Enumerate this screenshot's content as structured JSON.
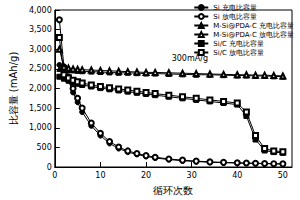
{
  "chart_data": {
    "type": "line",
    "x_label": "循环次数",
    "y_label": "比容量 (mAh/g)",
    "annotation": "300mA/g",
    "x": [
      1,
      2,
      3,
      4,
      5,
      6,
      8,
      10,
      12,
      14,
      16,
      18,
      20,
      22,
      25,
      28,
      31,
      34,
      37,
      40,
      42,
      44,
      46,
      48,
      50
    ],
    "xlim": [
      0,
      52
    ],
    "xticks": [
      0,
      10,
      20,
      30,
      40,
      50
    ],
    "ylim": [
      0,
      4000
    ],
    "yticks": [
      0,
      500,
      1000,
      1500,
      2000,
      2500,
      3000,
      3500,
      4000
    ],
    "grid": false,
    "legend": "top-right",
    "series": [
      {
        "name": "Si 充电比容量",
        "color": "#000000",
        "marker": "filled_circle",
        "line_style": "solid",
        "values": [
          2600,
          2450,
          2200,
          1900,
          1650,
          1400,
          1050,
          800,
          600,
          470,
          380,
          320,
          270,
          230,
          190,
          160,
          140,
          120,
          110,
          100,
          95,
          90,
          85,
          80,
          75
        ]
      },
      {
        "name": "Si 放电比容量",
        "color": "#000000",
        "marker": "open_circle",
        "line_style": "solid",
        "values": [
          3750,
          2550,
          2300,
          2000,
          1750,
          1500,
          1120,
          860,
          650,
          510,
          410,
          345,
          290,
          250,
          205,
          175,
          150,
          130,
          118,
          108,
          100,
          95,
          90,
          85,
          80
        ]
      },
      {
        "name": "M-Si@PDA-C 充电比容量",
        "color": "#000000",
        "marker": "filled_triangle",
        "line_style": "solid",
        "values": [
          2500,
          2480,
          2470,
          2460,
          2450,
          2440,
          2430,
          2420,
          2410,
          2400,
          2400,
          2390,
          2380,
          2380,
          2370,
          2360,
          2350,
          2350,
          2340,
          2330,
          2330,
          2320,
          2320,
          2310,
          2300
        ]
      },
      {
        "name": "M-Si@PDA-C 放电比容量",
        "color": "#000000",
        "marker": "open_triangle",
        "line_style": "solid",
        "values": [
          3000,
          2550,
          2520,
          2500,
          2490,
          2480,
          2470,
          2460,
          2450,
          2440,
          2430,
          2420,
          2410,
          2410,
          2400,
          2390,
          2380,
          2370,
          2360,
          2350,
          2350,
          2340,
          2340,
          2330,
          2320
        ]
      },
      {
        "name": "Si/C 充电比容量",
        "color": "#000000",
        "marker": "filled_square",
        "line_style": "solid",
        "values": [
          2300,
          2250,
          2200,
          2150,
          2120,
          2090,
          2050,
          2010,
          1980,
          1950,
          1920,
          1890,
          1860,
          1830,
          1790,
          1750,
          1710,
          1670,
          1630,
          1590,
          1300,
          700,
          420,
          380,
          360
        ]
      },
      {
        "name": "Si/C 放电比容量",
        "color": "#000000",
        "marker": "open_square",
        "line_style": "solid",
        "values": [
          3300,
          2350,
          2270,
          2210,
          2170,
          2140,
          2090,
          2050,
          2020,
          1990,
          1960,
          1930,
          1900,
          1870,
          1830,
          1790,
          1750,
          1710,
          1670,
          1630,
          1400,
          800,
          470,
          410,
          390
        ]
      }
    ]
  }
}
